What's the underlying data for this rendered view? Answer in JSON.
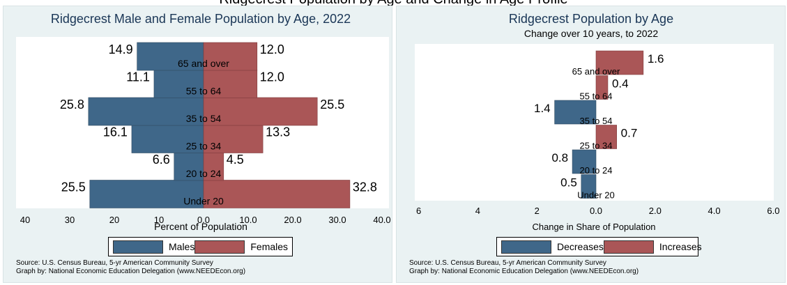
{
  "header": {
    "clipped_title": "Ridgecrest Population by Age and Change in Age Profile"
  },
  "colors": {
    "male": "#3f6789",
    "female": "#aa5657",
    "panel_bg": "#eaf2f3",
    "plot_bg": "#ffffff"
  },
  "chart_data": [
    {
      "type": "bar",
      "orientation": "horizontal",
      "title": "Ridgecrest Male and Female Population by Age, 2022",
      "xlabel": "Percent of Population",
      "x_ticks_left": [
        "40",
        "30",
        "20",
        "10",
        "0.0"
      ],
      "x_ticks_right": [
        "10.0",
        "20.0",
        "30.0",
        "40.0"
      ],
      "xlim": [
        -40,
        40
      ],
      "categories": [
        "Under 20",
        "20 to 24",
        "25 to 34",
        "35 to 54",
        "55 to 64",
        "65 and over"
      ],
      "series": [
        {
          "name": "Males",
          "values": [
            25.5,
            6.6,
            16.1,
            25.8,
            11.1,
            14.9
          ],
          "labels": [
            "25.5",
            "6.6",
            "16.1",
            "25.8",
            "11.1",
            "14.9"
          ]
        },
        {
          "name": "Females",
          "values": [
            32.8,
            4.5,
            13.3,
            25.5,
            12.0,
            12.0
          ],
          "labels": [
            "32.8",
            "4.5",
            "13.3",
            "25.5",
            "12.0",
            "12.0"
          ]
        }
      ],
      "legend": [
        "Males",
        "Females"
      ],
      "source": "Source:  U.S. Census Bureau, 5-yr American Community Survey",
      "credit": "Graph by: National Economic Education Delegation (www.NEEDEcon.org)"
    },
    {
      "type": "bar",
      "orientation": "horizontal",
      "title": "Ridgecrest Population by Age",
      "subtitle": "Change over 10 years, to 2022",
      "xlabel": "Change in Share of Population",
      "x_ticks_left": [
        "6",
        "4",
        "2",
        "0.0"
      ],
      "x_ticks_right": [
        "2.0",
        "4.0",
        "6.0"
      ],
      "xlim": [
        -6,
        6
      ],
      "categories": [
        "Under 20",
        "20 to 24",
        "25 to 34",
        "35 to 54",
        "55 to 64",
        "65 and over"
      ],
      "values": [
        -0.5,
        -0.8,
        0.7,
        -1.4,
        0.4,
        1.6
      ],
      "labels": [
        "0.5",
        "0.8",
        "0.7",
        "1.4",
        "0.4",
        "1.6"
      ],
      "legend": [
        "Decreases",
        "Increases"
      ],
      "source": "Source:  U.S. Census Bureau, 5-yr American Community Survey",
      "credit": "Graph by: National Economic Education Delegation (www.NEEDEcon.org)"
    }
  ]
}
